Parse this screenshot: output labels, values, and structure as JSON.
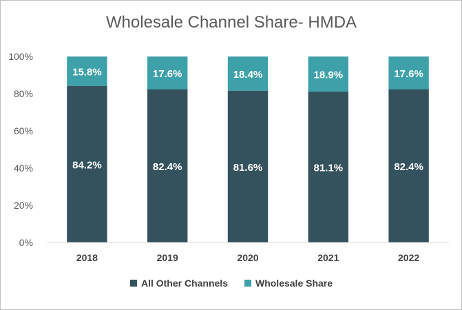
{
  "chart_data": {
    "type": "bar",
    "stacked": true,
    "title": "Wholesale Channel Share- HMDA",
    "categories": [
      "2018",
      "2019",
      "2020",
      "2021",
      "2022"
    ],
    "series": [
      {
        "name": "All Other Channels",
        "values": [
          84.2,
          82.4,
          81.6,
          81.1,
          82.4
        ],
        "labels": [
          "84.2%",
          "82.4%",
          "81.6%",
          "81.1%",
          "82.4%"
        ],
        "color": "#34525e"
      },
      {
        "name": "Wholesale Share",
        "values": [
          15.8,
          17.6,
          18.4,
          18.9,
          17.6
        ],
        "labels": [
          "15.8%",
          "17.6%",
          "18.4%",
          "18.9%",
          "17.6%"
        ],
        "color": "#3ea1aa"
      }
    ],
    "ylim": [
      0,
      100
    ],
    "yticks": [
      "0%",
      "20%",
      "40%",
      "60%",
      "80%",
      "100%"
    ],
    "grid": false,
    "legend": "bottom"
  }
}
